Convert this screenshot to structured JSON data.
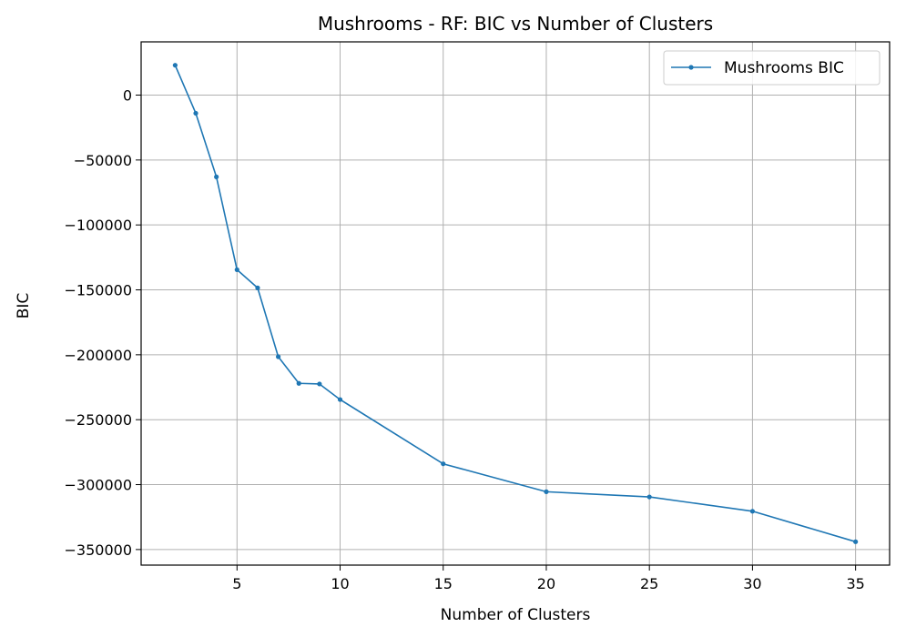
{
  "chart_data": {
    "type": "line",
    "title": "Mushrooms - RF: BIC vs Number of Clusters",
    "xlabel": "Number of Clusters",
    "ylabel": "BIC",
    "xlim": [
      0.35,
      36.65
    ],
    "ylim": [
      -362000,
      41000
    ],
    "xticks": [
      5,
      10,
      15,
      20,
      25,
      30,
      35
    ],
    "yticks": [
      0,
      -50000,
      -100000,
      -150000,
      -200000,
      -250000,
      -300000,
      -350000
    ],
    "xtick_labels": [
      "5",
      "10",
      "15",
      "20",
      "25",
      "30",
      "35"
    ],
    "ytick_labels": [
      "0",
      "−50000",
      "−100000",
      "−150000",
      "−200000",
      "−250000",
      "−300000",
      "−350000"
    ],
    "grid": true,
    "legend_position": "top-right",
    "series": [
      {
        "name": "Mushrooms BIC",
        "color": "#1f77b4",
        "marker": "circle",
        "x": [
          2,
          3,
          4,
          5,
          6,
          7,
          8,
          9,
          10,
          15,
          20,
          25,
          30,
          35
        ],
        "y": [
          23000,
          -14000,
          -63000,
          -134500,
          -148500,
          -201500,
          -222000,
          -222500,
          -234500,
          -284000,
          -305500,
          -309500,
          -320500,
          -344000
        ]
      }
    ]
  }
}
